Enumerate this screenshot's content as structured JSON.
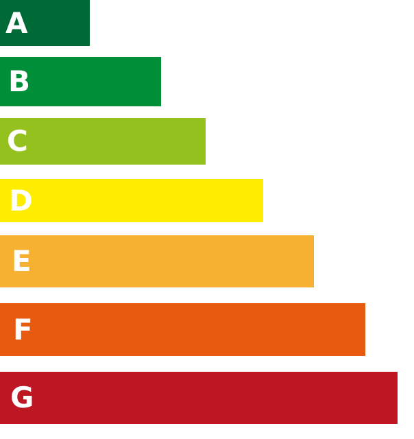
{
  "classes": [
    {
      "label": "A",
      "color": "#006a36"
    },
    {
      "label": "B",
      "color": "#008f39"
    },
    {
      "label": "C",
      "color": "#95c11f"
    },
    {
      "label": "D",
      "color": "#ffed00"
    },
    {
      "label": "E",
      "color": "#f6b133"
    },
    {
      "label": "F",
      "color": "#e85a0f"
    },
    {
      "label": "G",
      "color": "#be1622"
    }
  ]
}
